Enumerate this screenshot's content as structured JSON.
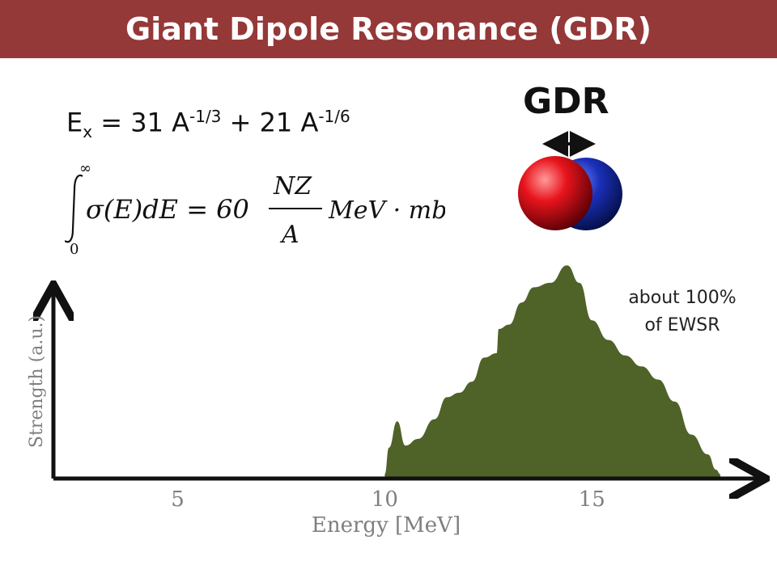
{
  "title": "Giant Dipole Resonance (GDR)",
  "colors": {
    "title_bar": "#953838",
    "resonance_fill": "#4f6228",
    "proton_sphere": "#e8141c",
    "neutron_sphere": "#1a2fb8",
    "axis": "#111111",
    "axis_text": "#7f7f7f"
  },
  "formula_ex": {
    "lhs": "E",
    "lhs_sub": "x",
    "part1": " = 31 A",
    "exp1": "-1/3",
    "part2": " + 21 A",
    "exp2": "-1/6"
  },
  "sum_rule": {
    "upper_limit": "∞",
    "lower_limit": "0",
    "integrand": "σ(E)dE = 60",
    "numerator": "NZ",
    "denominator": "A",
    "units": "MeV · mb"
  },
  "gdr_label": "GDR",
  "nucleus_icon": "proton-neutron-spheres-oscillating",
  "ewsr_note": [
    "about 100%",
    "of EWSR"
  ],
  "chart_data": {
    "type": "area",
    "xlabel": "Energy [MeV]",
    "ylabel": "Strength (a.u.)",
    "xlim": [
      2,
      19
    ],
    "ylim": [
      0,
      1
    ],
    "xticks": [
      5,
      10,
      15
    ],
    "grid": false,
    "legend": "none",
    "x": [
      10.0,
      10.1,
      10.3,
      10.5,
      10.8,
      11.2,
      11.5,
      11.8,
      12.1,
      12.4,
      12.7,
      12.75,
      13.0,
      13.3,
      13.6,
      14.0,
      14.4,
      14.7,
      15.0,
      15.4,
      15.8,
      16.2,
      16.6,
      17.0,
      17.4,
      17.8,
      18.0,
      18.1
    ],
    "y": [
      0.02,
      0.14,
      0.26,
      0.15,
      0.18,
      0.27,
      0.37,
      0.39,
      0.44,
      0.55,
      0.57,
      0.68,
      0.7,
      0.8,
      0.87,
      0.89,
      0.97,
      0.89,
      0.72,
      0.63,
      0.56,
      0.51,
      0.45,
      0.35,
      0.2,
      0.11,
      0.04,
      0.02
    ]
  }
}
